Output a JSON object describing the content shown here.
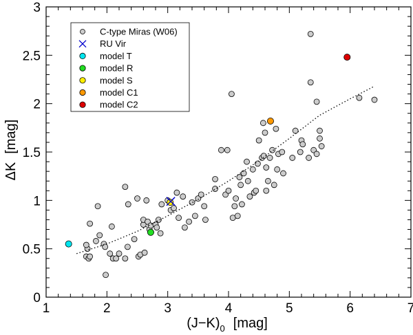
{
  "chart_data": {
    "type": "scatter",
    "xlabel": "(J−K)",
    "xlabel_subscript": "0",
    "xlabel_unit": "[mag]",
    "ylabel": "ΔK",
    "ylabel_unit": "[mag]",
    "xlim": [
      1,
      7
    ],
    "ylim": [
      0,
      3
    ],
    "xticks": [
      "1",
      "2",
      "3",
      "4",
      "5",
      "6",
      "7"
    ],
    "yticks": [
      "0",
      "0.5",
      "1",
      "1.5",
      "2",
      "2.5",
      "3"
    ],
    "legend_position": "top-left",
    "series": [
      {
        "name": "C-type Miras (W06)",
        "marker": "circle",
        "color": "#cccccc",
        "points": [
          [
            1.66,
            0.42
          ],
          [
            1.7,
            0.4
          ],
          [
            1.72,
            0.42
          ],
          [
            1.68,
            0.5
          ],
          [
            1.66,
            0.54
          ],
          [
            1.72,
            0.76
          ],
          [
            1.82,
            0.58
          ],
          [
            1.85,
            0.94
          ],
          [
            1.88,
            0.64
          ],
          [
            1.95,
            0.55
          ],
          [
            1.97,
            0.52
          ],
          [
            1.98,
            0.23
          ],
          [
            2.05,
            0.45
          ],
          [
            2.08,
            0.73
          ],
          [
            2.1,
            0.4
          ],
          [
            2.15,
            0.4
          ],
          [
            2.2,
            0.45
          ],
          [
            2.3,
            1.14
          ],
          [
            2.3,
            0.4
          ],
          [
            2.34,
            0.52
          ],
          [
            2.35,
            0.96
          ],
          [
            2.45,
            0.6
          ],
          [
            2.5,
            1.02
          ],
          [
            2.52,
            0.42
          ],
          [
            2.55,
            0.44
          ],
          [
            2.6,
            0.75
          ],
          [
            2.6,
            0.8
          ],
          [
            2.62,
            0.46
          ],
          [
            2.65,
            1.0
          ],
          [
            2.67,
            0.78
          ],
          [
            2.7,
            0.7
          ],
          [
            2.72,
            0.74
          ],
          [
            2.8,
            0.75
          ],
          [
            2.82,
            0.72
          ],
          [
            2.85,
            0.8
          ],
          [
            2.88,
            0.66
          ],
          [
            2.9,
            0.96
          ],
          [
            3.0,
            1.0
          ],
          [
            3.05,
            0.9
          ],
          [
            3.1,
            0.92
          ],
          [
            3.15,
            1.08
          ],
          [
            3.18,
            0.82
          ],
          [
            3.25,
            1.04
          ],
          [
            3.28,
            0.72
          ],
          [
            3.35,
            0.78
          ],
          [
            3.4,
            0.98
          ],
          [
            3.45,
            0.84
          ],
          [
            3.5,
            1.02
          ],
          [
            3.55,
            1.06
          ],
          [
            3.6,
            0.94
          ],
          [
            3.62,
            0.8
          ],
          [
            3.78,
            1.22
          ],
          [
            3.78,
            1.12
          ],
          [
            3.88,
            1.52
          ],
          [
            3.95,
            1.06
          ],
          [
            3.98,
            1.52
          ],
          [
            4.0,
            1.1
          ],
          [
            4.05,
            2.1
          ],
          [
            4.07,
            0.82
          ],
          [
            4.1,
            0.94
          ],
          [
            4.12,
            1.02
          ],
          [
            4.15,
            0.84
          ],
          [
            4.18,
            1.24
          ],
          [
            4.2,
            1.16
          ],
          [
            4.22,
            0.96
          ],
          [
            4.25,
            1.28
          ],
          [
            4.3,
            1.4
          ],
          [
            4.32,
            1.2
          ],
          [
            4.35,
            1.04
          ],
          [
            4.4,
            1.32
          ],
          [
            4.42,
            1.08
          ],
          [
            4.45,
            1.1
          ],
          [
            4.48,
            1.38
          ],
          [
            4.5,
            1.62
          ],
          [
            4.55,
            1.44
          ],
          [
            4.57,
            1.8
          ],
          [
            4.58,
            1.46
          ],
          [
            4.6,
            1.7
          ],
          [
            4.62,
            1.1
          ],
          [
            4.62,
            1.34
          ],
          [
            4.65,
            1.2
          ],
          [
            4.68,
            1.44
          ],
          [
            4.72,
            1.52
          ],
          [
            4.75,
            1.16
          ],
          [
            4.78,
            1.74
          ],
          [
            4.8,
            1.32
          ],
          [
            4.82,
            1.48
          ],
          [
            4.88,
            1.5
          ],
          [
            4.9,
            1.28
          ],
          [
            5.05,
            1.44
          ],
          [
            5.1,
            1.72
          ],
          [
            5.18,
            1.5
          ],
          [
            5.2,
            1.62
          ],
          [
            5.22,
            1.58
          ],
          [
            5.32,
            1.44
          ],
          [
            5.35,
            2.72
          ],
          [
            5.35,
            2.22
          ],
          [
            5.4,
            1.52
          ],
          [
            5.45,
            2.02
          ],
          [
            5.45,
            1.48
          ],
          [
            5.5,
            1.64
          ],
          [
            5.5,
            1.72
          ],
          [
            5.53,
            1.56
          ],
          [
            6.15,
            2.06
          ],
          [
            6.4,
            2.04
          ]
        ]
      },
      {
        "name": "RU Vir",
        "marker": "cross",
        "color": "#0000cc",
        "points": [
          [
            3.05,
            0.99
          ]
        ]
      },
      {
        "name": "model T",
        "marker": "circle",
        "color": "#00e5ee",
        "points": [
          [
            1.37,
            0.55
          ]
        ]
      },
      {
        "name": "model R",
        "marker": "circle",
        "color": "#22dd22",
        "points": [
          [
            2.72,
            0.67
          ]
        ]
      },
      {
        "name": "model S",
        "marker": "circle",
        "color": "#ffee00",
        "points": [
          [
            3.04,
            0.98
          ]
        ]
      },
      {
        "name": "model C1",
        "marker": "circle",
        "color": "#ff9900",
        "points": [
          [
            4.69,
            1.82
          ]
        ]
      },
      {
        "name": "model C2",
        "marker": "circle",
        "color": "#dd0000",
        "points": [
          [
            5.95,
            2.48
          ]
        ]
      }
    ],
    "fit_line": {
      "style": "dotted",
      "color": "#000000",
      "points": [
        [
          1.5,
          0.45
        ],
        [
          2.0,
          0.55
        ],
        [
          2.5,
          0.68
        ],
        [
          3.0,
          0.84
        ],
        [
          3.5,
          1.01
        ],
        [
          4.0,
          1.2
        ],
        [
          4.5,
          1.41
        ],
        [
          5.0,
          1.64
        ],
        [
          5.5,
          1.88
        ],
        [
          6.0,
          2.05
        ],
        [
          6.4,
          2.18
        ]
      ]
    }
  }
}
